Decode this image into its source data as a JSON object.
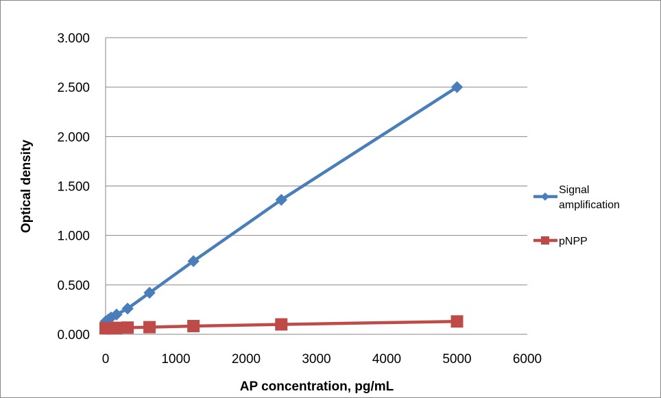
{
  "chart_data": {
    "type": "line",
    "xlabel": "AP concentration, pg/mL",
    "ylabel": "Optical density",
    "xlim": [
      0,
      6000
    ],
    "ylim": [
      0,
      3
    ],
    "x_ticks": [
      0,
      1000,
      2000,
      3000,
      4000,
      5000,
      6000
    ],
    "x_tick_labels": [
      "0",
      "1000",
      "2000",
      "3000",
      "4000",
      "5000",
      "6000"
    ],
    "y_ticks": [
      0,
      0.5,
      1,
      1.5,
      2,
      2.5,
      3
    ],
    "y_tick_labels": [
      "0.000",
      "0.500",
      "1.000",
      "1.500",
      "2.000",
      "2.500",
      "3.000"
    ],
    "grid": "horizontal major gridlines",
    "legend_position": "right",
    "series": [
      {
        "name": "Signal amplification",
        "label_lines": [
          "Signal",
          "amplification"
        ],
        "color": "#4a7ebb",
        "marker": "diamond",
        "x": [
          0,
          39,
          78,
          156,
          313,
          625,
          1250,
          2500,
          5000
        ],
        "y": [
          0.13,
          0.15,
          0.17,
          0.2,
          0.26,
          0.42,
          0.74,
          1.36,
          2.5
        ]
      },
      {
        "name": "pNPP",
        "label_lines": [
          "pNPP"
        ],
        "color": "#be4b48",
        "marker": "square",
        "x": [
          0,
          39,
          78,
          156,
          313,
          625,
          1250,
          2500,
          5000
        ],
        "y": [
          0.06,
          0.062,
          0.063,
          0.065,
          0.068,
          0.072,
          0.083,
          0.1,
          0.13
        ]
      }
    ]
  }
}
